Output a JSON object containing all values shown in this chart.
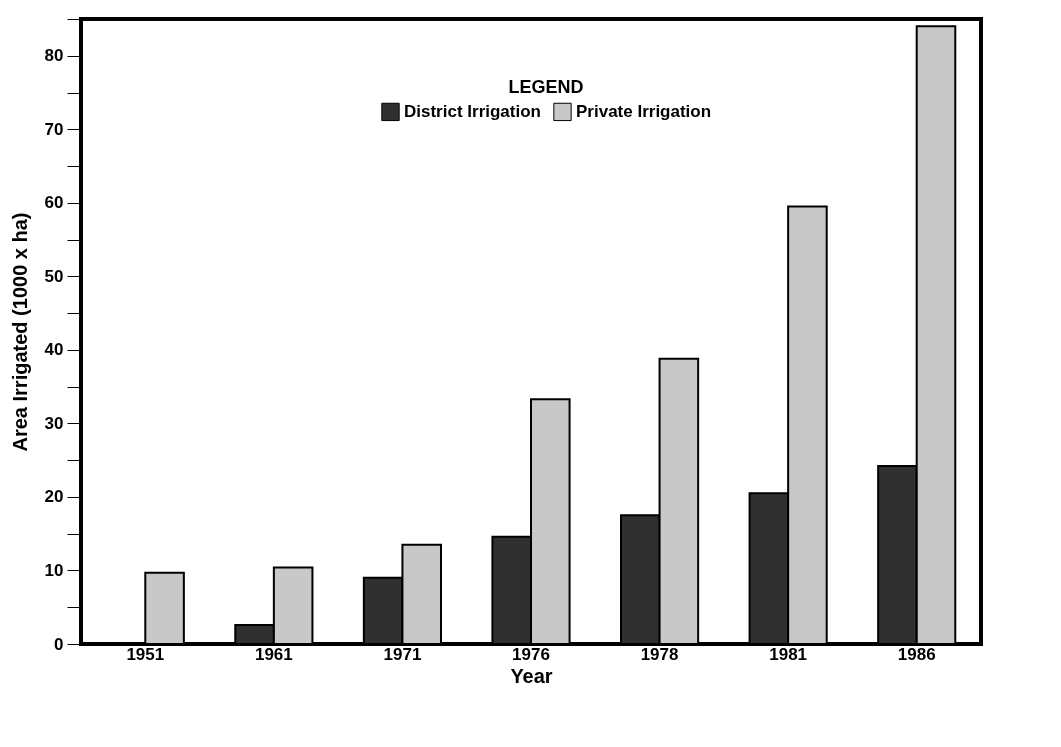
{
  "chart_data": {
    "type": "bar",
    "xlabel": "Year",
    "ylabel": "Area Irrigated (1000 x ha)",
    "legend_title": "LEGEND",
    "categories": [
      "1951",
      "1961",
      "1971",
      "1976",
      "1978",
      "1981",
      "1986"
    ],
    "series": [
      {
        "name": "District Irrigation",
        "color": "#303030",
        "values": [
          null,
          2.6,
          9.0,
          14.6,
          17.5,
          20.5,
          24.2
        ]
      },
      {
        "name": "Private Irrigation",
        "color": "#c8c8c8",
        "values": [
          9.7,
          10.4,
          13.5,
          33.3,
          38.8,
          59.5,
          84.0
        ]
      }
    ],
    "ylim": [
      0,
      85
    ],
    "yticks": [
      0,
      {
        "value": 5,
        "label": null
      },
      10,
      {
        "value": 15,
        "label": null
      },
      20,
      {
        "value": 25,
        "label": null
      },
      30,
      {
        "value": 35,
        "label": null
      },
      40,
      {
        "value": 45,
        "label": null
      },
      50,
      {
        "value": 55,
        "label": null
      },
      60,
      {
        "value": 65,
        "label": null
      },
      70,
      {
        "value": 75,
        "label": null
      },
      80,
      {
        "value": 85,
        "label": null
      }
    ],
    "grid": false,
    "legend": "top"
  }
}
